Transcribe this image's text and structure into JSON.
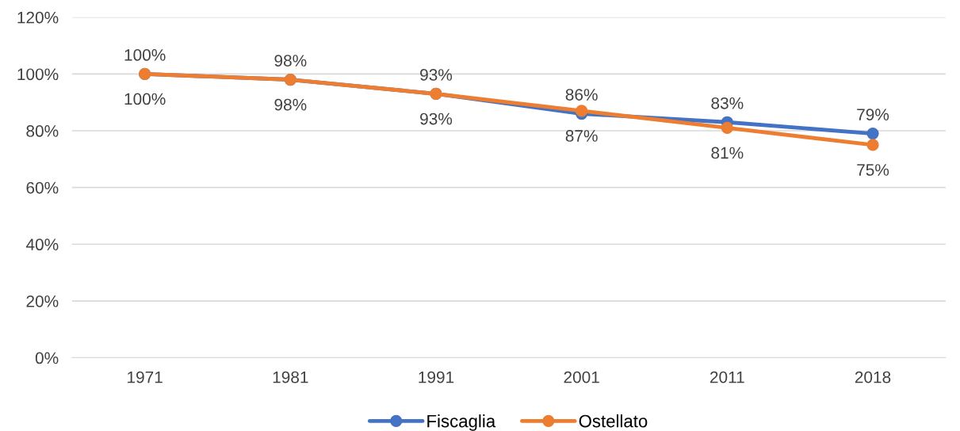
{
  "chart_data": {
    "type": "line",
    "categories": [
      "1971",
      "1981",
      "1991",
      "2001",
      "2011",
      "2018"
    ],
    "series": [
      {
        "name": "Fiscaglia",
        "color": "#4472c4",
        "values": [
          100,
          98,
          93,
          86,
          83,
          79
        ],
        "value_labels": [
          "100%",
          "98%",
          "93%",
          "86%",
          "83%",
          "79%"
        ]
      },
      {
        "name": "Ostellato",
        "color": "#ed7d31",
        "values": [
          100,
          98,
          93,
          87,
          81,
          75
        ],
        "value_labels": [
          "100%",
          "98%",
          "93%",
          "87%",
          "81%",
          "75%"
        ]
      }
    ],
    "ylim": [
      0,
      120
    ],
    "yticks": [
      {
        "value": 0,
        "label": "0%"
      },
      {
        "value": 20,
        "label": "20%"
      },
      {
        "value": 40,
        "label": "40%"
      },
      {
        "value": 60,
        "label": "60%"
      },
      {
        "value": 80,
        "label": "80%"
      },
      {
        "value": 100,
        "label": "100%"
      },
      {
        "value": 120,
        "label": "120%"
      }
    ],
    "grid": "y",
    "legend": "bottom",
    "marker": "circle",
    "line_style": "solid"
  }
}
